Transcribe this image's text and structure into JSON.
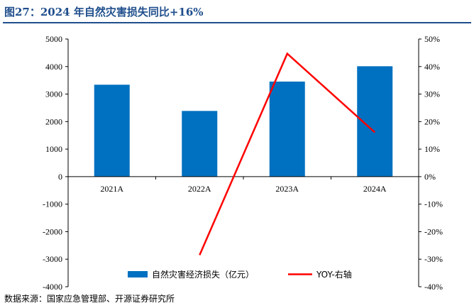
{
  "title": "图27：2024 年自然灾害损失同比+16%",
  "source": "数据来源：国家应急管理部、开源证券研究所",
  "colors": {
    "bar": "#0070c0",
    "line": "#ff0000",
    "title": "#1f4e8c"
  },
  "chart_data": {
    "type": "bar",
    "categories": [
      "2021A",
      "2022A",
      "2023A",
      "2024A"
    ],
    "series": [
      {
        "name": "自然灾害经济损失（亿元）",
        "type": "bar",
        "axis": "left",
        "values": [
          3340,
          2387,
          3454,
          4011
        ]
      },
      {
        "name": "YOY-右轴",
        "type": "line",
        "axis": "right",
        "values": [
          null,
          -28.5,
          44.7,
          16.1
        ]
      }
    ],
    "ylim_left": [
      -4000,
      5000
    ],
    "yticks_left": [
      5000,
      4000,
      3000,
      2000,
      1000,
      0,
      -1000,
      -2000,
      -3000,
      -4000
    ],
    "ylim_right": [
      -40,
      50
    ],
    "yticks_right": [
      "50%",
      "40%",
      "30%",
      "20%",
      "10%",
      "0%",
      "-10%",
      "-20%",
      "-30%",
      "-40%"
    ],
    "legend_position": "bottom-center",
    "grid": false
  }
}
